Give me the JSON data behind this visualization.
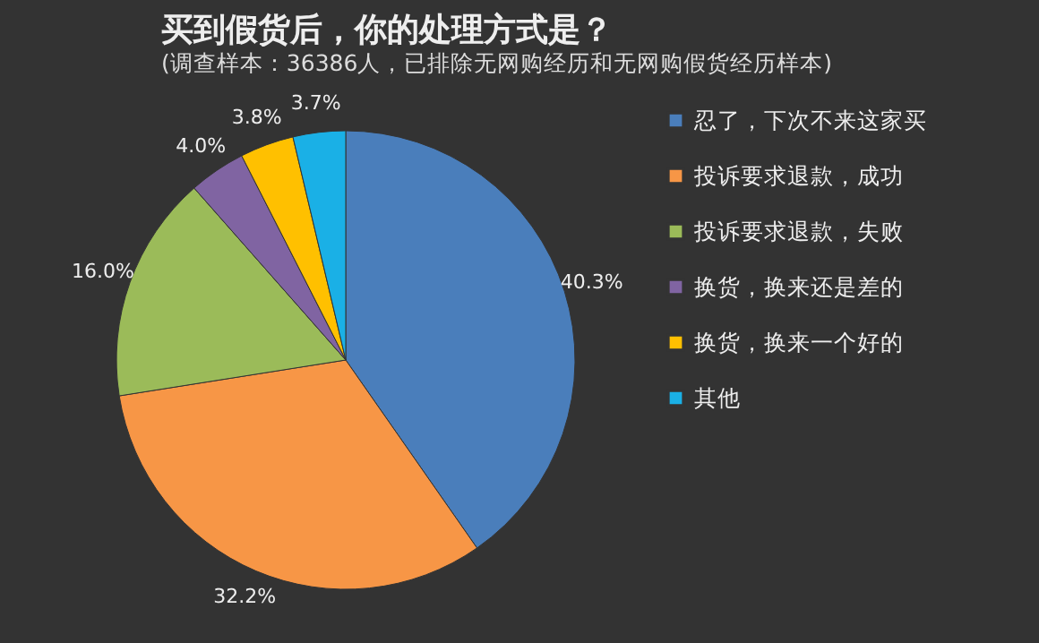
{
  "chart_data": {
    "type": "pie",
    "title": "买到假货后，你的处理方式是？",
    "subtitle": "(调查样本：36386人，已排除无网购经历和无网购假货经历样本)",
    "categories": [
      "忍了，下次不来这家买",
      "投诉要求退款，成功",
      "投诉要求退款，失败",
      "换货，换来还是差的",
      "换货，换来一个好的",
      "其他"
    ],
    "values": [
      40.3,
      32.2,
      16.0,
      4.0,
      3.8,
      3.7
    ],
    "value_labels": [
      "40.3%",
      "32.2%",
      "16.0%",
      "4.0%",
      "3.8%",
      "3.7%"
    ],
    "colors": [
      "#4a7ebb",
      "#f79646",
      "#9bbb59",
      "#8064a2",
      "#ffc000",
      "#1ab0e6"
    ],
    "legend": "right"
  }
}
